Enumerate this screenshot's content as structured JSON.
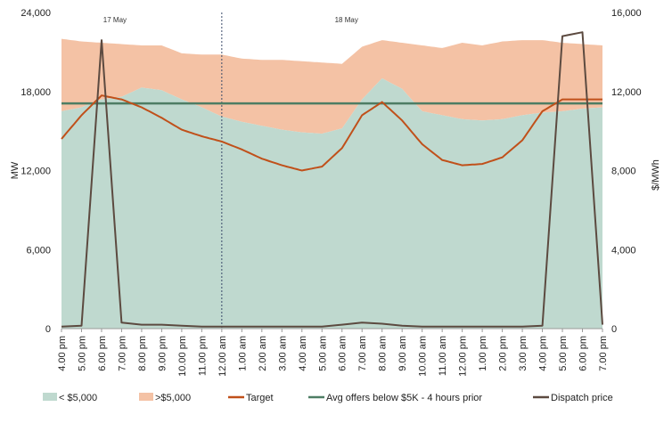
{
  "chart_data": {
    "type": "area",
    "ylabel_left": "MW",
    "ylabel_right": "$/MWh",
    "y_left_range": [
      0,
      24000
    ],
    "y_right_range": [
      0,
      16000
    ],
    "y_left_ticks": [
      "0",
      "6,000",
      "12,000",
      "18,000",
      "24,000"
    ],
    "y_right_ticks": [
      "0",
      "4,000",
      "8,000",
      "12,000",
      "16,000"
    ],
    "grid": false,
    "legend_position": "bottom",
    "day_labels": [
      "17 May",
      "18 May"
    ],
    "day_divider_at": "12.00 am",
    "x_categories": [
      "4.00 pm",
      "5.00 pm",
      "6.00 pm",
      "7.00 pm",
      "8.00 pm",
      "9.00 pm",
      "10.00 pm",
      "11.00 pm",
      "12.00 am",
      "1.00 am",
      "2.00 am",
      "3.00 am",
      "4.00 am",
      "5.00 am",
      "6.00 am",
      "7.00 am",
      "8.00 am",
      "9.00 am",
      "10.00 am",
      "11.00 am",
      "12.00 pm",
      "1.00 pm",
      "2.00 pm",
      "3.00 pm",
      "4.00 pm",
      "5.00 pm",
      "6.00 pm",
      "7.00 pm"
    ],
    "series": [
      {
        "name": "< $5,000",
        "kind": "area",
        "color": "#bfd9cf",
        "values": [
          16500,
          16800,
          17400,
          17600,
          18300,
          18100,
          17400,
          16800,
          16100,
          15700,
          15400,
          15100,
          14900,
          14800,
          15200,
          17400,
          19000,
          18200,
          16500,
          16200,
          15900,
          15800,
          15900,
          16200,
          16400,
          16500,
          16700,
          16800
        ]
      },
      {
        "name": ">$5,000",
        "kind": "area_top",
        "color": "#f4c2a5",
        "values": [
          22000,
          21800,
          21700,
          21600,
          21500,
          21500,
          20900,
          20800,
          20800,
          20500,
          20400,
          20400,
          20300,
          20200,
          20100,
          21400,
          21900,
          21700,
          21500,
          21300,
          21700,
          21500,
          21800,
          21900,
          21900,
          21700,
          21600,
          21500
        ]
      },
      {
        "name": "Target",
        "kind": "line",
        "color": "#c0501a",
        "values": [
          14400,
          16200,
          17700,
          17400,
          16800,
          16000,
          15100,
          14600,
          14200,
          13600,
          12900,
          12400,
          12000,
          12300,
          13700,
          16200,
          17200,
          15800,
          14000,
          12800,
          12400,
          12500,
          13000,
          14300,
          16500,
          17400,
          17400,
          17400
        ]
      },
      {
        "name": "Avg offers below $5K - 4 hours prior",
        "kind": "flat",
        "color": "#4d7d64",
        "values": [
          17100
        ]
      },
      {
        "name": "Dispatch price",
        "kind": "line",
        "axis": "right",
        "color": "#5c4a40",
        "values": [
          100,
          150,
          14600,
          300,
          200,
          200,
          150,
          100,
          100,
          100,
          100,
          100,
          100,
          100,
          200,
          300,
          250,
          150,
          100,
          100,
          100,
          100,
          100,
          100,
          150,
          14800,
          15000,
          200
        ]
      }
    ]
  }
}
